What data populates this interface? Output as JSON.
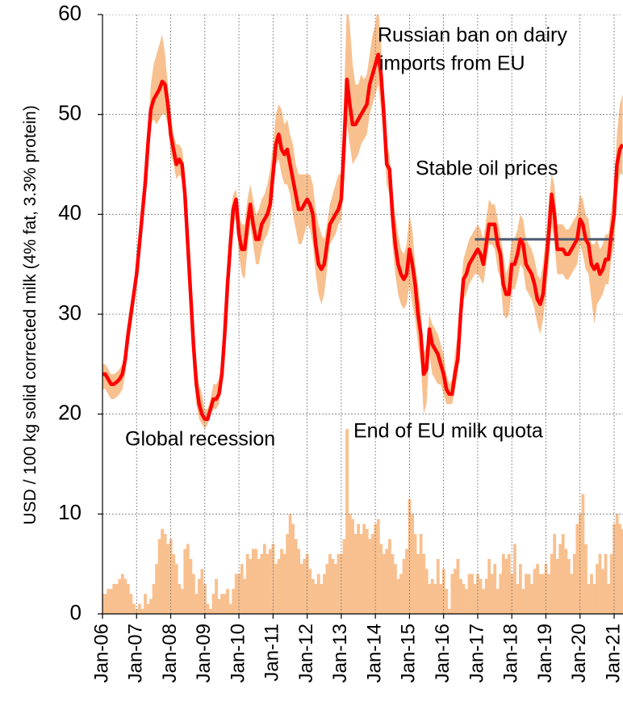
{
  "chart_data": {
    "type": "line",
    "ylabel": "USD / 100 kg solid corrected milk (4% fat, 3.3% protein)",
    "categories": [
      "Jan-06",
      null,
      null,
      null,
      null,
      null,
      null,
      null,
      null,
      null,
      null,
      null,
      "Jan-07",
      null,
      null,
      null,
      null,
      null,
      null,
      null,
      null,
      null,
      null,
      null,
      "Jan-08",
      null,
      null,
      null,
      null,
      null,
      null,
      null,
      null,
      null,
      null,
      null,
      "Jan-09",
      null,
      null,
      null,
      null,
      null,
      null,
      null,
      null,
      null,
      null,
      null,
      "Jan-10",
      null,
      null,
      null,
      null,
      null,
      null,
      null,
      null,
      null,
      null,
      null,
      "Jan-11",
      null,
      null,
      null,
      null,
      null,
      null,
      null,
      null,
      null,
      null,
      null,
      "Jan-12",
      null,
      null,
      null,
      null,
      null,
      null,
      null,
      null,
      null,
      null,
      null,
      "Jan-13",
      null,
      null,
      null,
      null,
      null,
      null,
      null,
      null,
      null,
      null,
      null,
      "Jan-14",
      null,
      null,
      null,
      null,
      null,
      null,
      null,
      null,
      null,
      null,
      null,
      "Jan-15",
      null,
      null,
      null,
      null,
      null,
      null,
      null,
      null,
      null,
      null,
      null,
      "Jan-16",
      null,
      null,
      null,
      null,
      null,
      null,
      null,
      null,
      null,
      null,
      null,
      "Jan-17",
      null,
      null,
      null,
      null,
      null,
      null,
      null,
      null,
      null,
      null,
      null,
      "Jan-18",
      null,
      null,
      null,
      null,
      null,
      null,
      null,
      null,
      null,
      null,
      null,
      "Jan-19",
      null,
      null,
      null,
      null,
      null,
      null,
      null,
      null,
      null,
      null,
      null,
      "Jan-20",
      null,
      null,
      null,
      null,
      null,
      null,
      null,
      null,
      null,
      null,
      null,
      "Jan-21",
      null,
      null,
      null
    ],
    "line": {
      "color": "#ff0000",
      "values": [
        24,
        24,
        23.5,
        23,
        23,
        23.2,
        23.5,
        24,
        25.5,
        28,
        30,
        32,
        34,
        37,
        40,
        43,
        47,
        50.5,
        51.5,
        52,
        52.5,
        53.3,
        53,
        51,
        48,
        46.5,
        45,
        45.5,
        45,
        42,
        37,
        32,
        27,
        23,
        21,
        20,
        19.5,
        19.5,
        20.5,
        21.5,
        21.5,
        22,
        24,
        28,
        33,
        37,
        40.5,
        41.5,
        38,
        36.5,
        36.5,
        39,
        41,
        39,
        37.5,
        37.5,
        39,
        39.5,
        40,
        41,
        44,
        47,
        48,
        46.5,
        46,
        46.5,
        45,
        43.5,
        42,
        40.5,
        40.5,
        41,
        41.5,
        41,
        40,
        37,
        35,
        34.5,
        35,
        37,
        39,
        39.5,
        40,
        40.5,
        41.5,
        47,
        53.5,
        51,
        49,
        49,
        49.5,
        50,
        50.5,
        51,
        53,
        54,
        55,
        56,
        54,
        50,
        45,
        44.5,
        40,
        37,
        35,
        34,
        33.5,
        34,
        36.5,
        35,
        33,
        30,
        28,
        24,
        24.5,
        28.5,
        27,
        26.5,
        26,
        25,
        24,
        22.5,
        22,
        22,
        24,
        25.5,
        30,
        33.5,
        34,
        35,
        35.5,
        36,
        36.5,
        36,
        35,
        37,
        39,
        39,
        39,
        37,
        36,
        33,
        32,
        32,
        35,
        35,
        36,
        37.5,
        37,
        35,
        34.5,
        34,
        33,
        31.5,
        31,
        32,
        35,
        38,
        42,
        40,
        36.5,
        36.5,
        36.5,
        36,
        36,
        36.5,
        37,
        37.5,
        39.5,
        39,
        37.5,
        37,
        35,
        34.5,
        35,
        34,
        34.5,
        35.5,
        35.5,
        38,
        40,
        45,
        46.5,
        47
      ]
    },
    "band": {
      "color": "#f8c08f",
      "high": [
        25,
        25,
        24.5,
        24,
        24,
        24.2,
        24.5,
        25,
        26.5,
        29,
        31,
        33,
        35,
        38,
        41,
        44,
        48,
        53,
        55,
        56,
        57,
        58,
        56,
        53,
        50,
        48,
        47,
        47,
        46.5,
        44,
        39,
        34,
        29,
        25,
        23,
        22,
        20.5,
        20.5,
        21.5,
        23,
        23,
        23.5,
        25.5,
        30,
        35,
        40,
        42,
        42.5,
        40,
        39,
        39,
        41.5,
        43,
        41.5,
        40,
        40.5,
        41.5,
        42,
        43,
        44.5,
        47,
        50,
        51,
        50.5,
        49,
        49.5,
        48,
        47,
        45,
        44,
        44,
        44,
        44,
        44,
        43,
        40.5,
        39,
        38,
        37.5,
        39,
        41,
        42,
        43,
        44,
        44,
        52,
        61,
        59,
        55,
        53,
        53,
        54,
        53.5,
        54,
        56,
        58,
        59,
        61,
        57,
        52,
        47,
        46,
        42.5,
        40,
        38,
        36.5,
        36,
        37,
        40,
        38.5,
        35,
        33,
        30.5,
        26,
        27,
        30,
        29,
        28.5,
        28,
        27,
        26,
        24,
        23,
        23.5,
        26,
        28,
        32.5,
        35.5,
        36.5,
        37.5,
        38,
        38.5,
        39,
        38.5,
        37.5,
        39.5,
        41.5,
        41,
        41,
        39.5,
        38,
        36,
        34,
        35,
        37.5,
        37.5,
        38.5,
        40,
        39.5,
        37.5,
        37,
        36.5,
        35.5,
        34,
        33.5,
        35,
        38,
        41,
        44,
        43,
        39,
        39,
        39,
        38.5,
        38.5,
        39,
        39.5,
        40,
        42,
        41.5,
        40,
        39.5,
        37,
        37,
        37.5,
        36.5,
        37,
        38,
        38,
        40.5,
        43,
        48,
        51,
        52
      ],
      "low": [
        22.5,
        22.5,
        22,
        21.5,
        21.5,
        21.7,
        22,
        22.5,
        24,
        26.5,
        28.5,
        30.5,
        33,
        36,
        39,
        42,
        46,
        49,
        49.5,
        49,
        49.5,
        50,
        50,
        49,
        46,
        45,
        43.5,
        44,
        43.5,
        40,
        35,
        30,
        25,
        21,
        19.5,
        19,
        18.5,
        19,
        20,
        20.5,
        20.5,
        21,
        23,
        27,
        31.5,
        35,
        38.5,
        40,
        36,
        34,
        33.5,
        36.5,
        39,
        37,
        35,
        35,
        36.5,
        37.5,
        38,
        39,
        42,
        45,
        45.5,
        44,
        43,
        43,
        42,
        40,
        38.5,
        37,
        37,
        38,
        39,
        38.5,
        37,
        34,
        32,
        31,
        32,
        34.5,
        37,
        37.5,
        38,
        39,
        39.5,
        43,
        49,
        47,
        45,
        45.5,
        46,
        47,
        47.5,
        48,
        50,
        51,
        52,
        53,
        50.5,
        47.5,
        43,
        42,
        37,
        34,
        32,
        31,
        30.5,
        31,
        33,
        31,
        29.5,
        27,
        25,
        20,
        21,
        26,
        24,
        23.5,
        23,
        23,
        22,
        21,
        21,
        21,
        22.5,
        24,
        28,
        31.5,
        32,
        33,
        33.5,
        34,
        34,
        33.5,
        33,
        35,
        37,
        37,
        36.5,
        34.5,
        33.5,
        30,
        29.5,
        30,
        32.5,
        32.5,
        33.5,
        35,
        34.5,
        32.5,
        32,
        31.5,
        30.5,
        29,
        28,
        29.5,
        32,
        35,
        39,
        37,
        34,
        34,
        34,
        33.5,
        33.5,
        34,
        34.5,
        35,
        37,
        36,
        34.5,
        34,
        31.5,
        29,
        31,
        31.5,
        32,
        33,
        33,
        35.5,
        37,
        42,
        44,
        44
      ]
    },
    "bars": {
      "color": "#f8c08f",
      "values": [
        2,
        2,
        2.5,
        2.5,
        3,
        3,
        3.5,
        4,
        3.5,
        3,
        2,
        1,
        0.5,
        1,
        0.5,
        2,
        1,
        1.5,
        3,
        5,
        7.5,
        8.5,
        8,
        7,
        7.5,
        6,
        5,
        3,
        2.5,
        6.5,
        7,
        5.5,
        4,
        2,
        3.5,
        4.5,
        3,
        1,
        0.5,
        2,
        3.5,
        1.5,
        2,
        2,
        2.5,
        1,
        2.5,
        4,
        4,
        5,
        3.5,
        6,
        5.5,
        6.5,
        6.5,
        5.5,
        6,
        7,
        6,
        6.5,
        7,
        5,
        5.5,
        6.5,
        6,
        8,
        10,
        9,
        7.5,
        6.5,
        5,
        5.5,
        6,
        4.5,
        3.5,
        3,
        4,
        3,
        4,
        5,
        6,
        5.5,
        5,
        6,
        6,
        7.5,
        18.5,
        10,
        9.5,
        8,
        9,
        8,
        9,
        8.5,
        7.5,
        8,
        9,
        9.5,
        7,
        6,
        6.5,
        7.5,
        6,
        5,
        3.5,
        4,
        5.5,
        6.5,
        11.5,
        10,
        8,
        6,
        8,
        6,
        4.5,
        3,
        3.5,
        3,
        5.5,
        3,
        4.5,
        2.5,
        0.5,
        4,
        4.5,
        5.5,
        3.5,
        3,
        2.5,
        4,
        4,
        3,
        4,
        3.5,
        2.5,
        3.5,
        5.5,
        4,
        5,
        2.5,
        4,
        6,
        5.5,
        6,
        4,
        7,
        3,
        5,
        2.5,
        4,
        4,
        3,
        4.5,
        5,
        4,
        4,
        5,
        4,
        6,
        8,
        5.5,
        7,
        8,
        6.5,
        5.5,
        4,
        6,
        9,
        10,
        12,
        7,
        3,
        4,
        3,
        5,
        6,
        4.5,
        6,
        3,
        6,
        9,
        10,
        9,
        8.5
      ]
    },
    "reference_line": {
      "y": 37.5,
      "x": [
        131,
        180
      ],
      "color": "#4a5a70"
    },
    "annotations": [
      "Russian ban on dairy",
      "imports from EU",
      "Stable oil prices",
      "Global recession",
      "End of EU milk quota"
    ],
    "ylim": [
      0,
      60
    ],
    "yticks": [
      0,
      10,
      20,
      30,
      40,
      50,
      60
    ],
    "grid": true
  }
}
